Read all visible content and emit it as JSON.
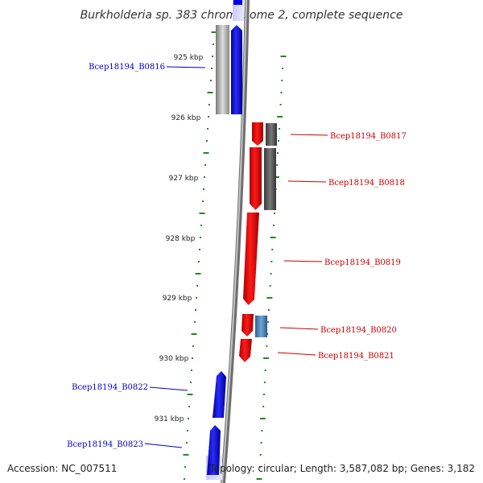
{
  "title": "Burkholderia sp. 383 chromosome 2, complete sequence",
  "footer": {
    "accession": "Accession: NC_007511",
    "topology": "Topology: circular; Length: 3,587,082 bp; Genes: 3,182"
  },
  "ticks": [
    "925 kbp",
    "926 kbp",
    "927 kbp",
    "928 kbp",
    "929 kbp",
    "930 kbp",
    "931 kbp"
  ],
  "genes": [
    {
      "name": "Bcep18194_B0816",
      "strand": "forward"
    },
    {
      "name": "Bcep18194_B0817",
      "strand": "reverse"
    },
    {
      "name": "Bcep18194_B0818",
      "strand": "reverse"
    },
    {
      "name": "Bcep18194_B0819",
      "strand": "reverse"
    },
    {
      "name": "Bcep18194_B0820",
      "strand": "reverse"
    },
    {
      "name": "Bcep18194_B0821",
      "strand": "reverse"
    },
    {
      "name": "Bcep18194_B0822",
      "strand": "forward"
    },
    {
      "name": "Bcep18194_B0823",
      "strand": "forward"
    }
  ],
  "colors": {
    "forward": "#0000ff",
    "reverse": "#ff0000",
    "forward_label": "#0000cc",
    "reverse_label": "#cc0000",
    "tick": "#228822",
    "backbone": "#888888"
  }
}
